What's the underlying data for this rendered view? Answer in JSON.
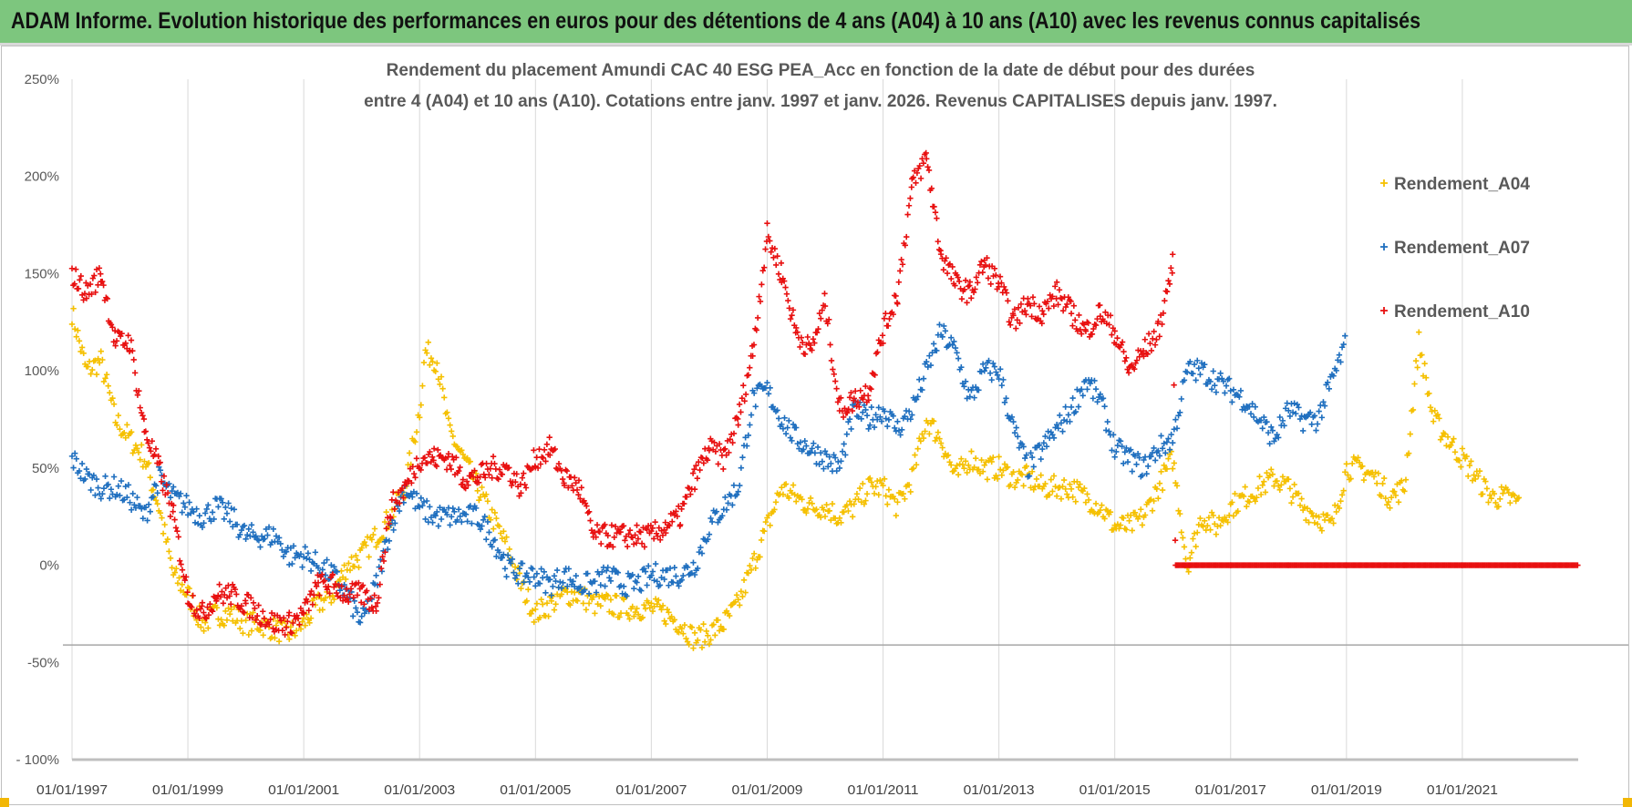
{
  "header": {
    "title": "ADAM Informe. Evolution historique des performances en euros pour des détentions de 4 ans (A04) à 10 ans (A10) avec les revenus connus capitalisés"
  },
  "colors": {
    "banner": "#7dc67e",
    "A04": "#f5c000",
    "A07": "#1f6fbf",
    "A10": "#e81010",
    "grid": "#d9d9d9",
    "text": "#595959"
  },
  "chart_data": {
    "type": "scatter",
    "title": "Rendement du placement Amundi CAC 40 ESG PEA_Acc en fonction de la date de début pour des durées",
    "subtitle": "entre 4 (A04) et 10 ans (A10).  Cotations entre janv. 1997 et janv. 2026. Revenus CAPITALISES  depuis janv. 1997.",
    "xlabel": "",
    "ylabel": "",
    "xlim": [
      1997,
      2023
    ],
    "ylim": [
      -100,
      250
    ],
    "yticks": [
      250,
      200,
      150,
      100,
      50,
      0,
      -50,
      -100
    ],
    "ytick_labels": [
      "250%",
      "200%",
      "150%",
      "100%",
      "50%",
      "0%",
      "-50%",
      "- 100%"
    ],
    "xtick_labels": [
      "01/01/1997",
      "01/01/1999",
      "01/01/2001",
      "01/01/2003",
      "01/01/2005",
      "01/01/2007",
      "01/01/2009",
      "01/01/2011",
      "01/01/2013",
      "01/01/2015",
      "01/01/2017",
      "01/01/2019",
      "01/01/2021"
    ],
    "xticks": [
      1997,
      1999,
      2001,
      2003,
      2005,
      2007,
      2009,
      2011,
      2013,
      2015,
      2017,
      2019,
      2021
    ],
    "grid": "vertical",
    "legend_position": "right",
    "marker": "+",
    "series": [
      {
        "name": "Rendement_A04",
        "color": "#f5c000",
        "x": [
          1997,
          1997.25,
          1997.5,
          1997.75,
          1998,
          1998.25,
          1998.5,
          1998.75,
          1999,
          1999.25,
          1999.5,
          1999.75,
          2000,
          2000.25,
          2000.5,
          2000.75,
          2001,
          2001.25,
          2001.5,
          2001.75,
          2002,
          2002.25,
          2002.5,
          2002.75,
          2003,
          2003.1,
          2003.3,
          2003.5,
          2003.75,
          2004,
          2004.25,
          2004.5,
          2004.75,
          2005,
          2005.25,
          2005.5,
          2005.75,
          2006,
          2006.25,
          2006.5,
          2006.75,
          2007,
          2007.25,
          2007.5,
          2007.75,
          2008,
          2008.25,
          2008.5,
          2008.75,
          2009,
          2009.25,
          2009.5,
          2009.75,
          2010,
          2010.25,
          2010.5,
          2010.75,
          2011,
          2011.25,
          2011.5,
          2011.75,
          2012,
          2012.25,
          2012.5,
          2012.75,
          2013,
          2013.25,
          2013.5,
          2013.75,
          2014,
          2014.25,
          2014.5,
          2014.75,
          2015,
          2015.25,
          2015.5,
          2015.75,
          2016,
          2016.25,
          2016.5,
          2016.75,
          2017,
          2017.25,
          2017.5,
          2017.75,
          2018,
          2018.25,
          2018.5,
          2018.75,
          2019,
          2019.25,
          2019.5,
          2019.75,
          2020,
          2020.25,
          2020.5,
          2020.75,
          2021,
          2021.25,
          2021.5,
          2021.75,
          2022
        ],
        "y": [
          130,
          100,
          105,
          75,
          65,
          55,
          30,
          -5,
          -15,
          -30,
          -25,
          -25,
          -30,
          -30,
          -33,
          -35,
          -30,
          -20,
          -15,
          0,
          5,
          15,
          25,
          40,
          80,
          110,
          105,
          70,
          55,
          40,
          25,
          10,
          -10,
          -25,
          -20,
          -15,
          -15,
          -20,
          -20,
          -22,
          -22,
          -22,
          -25,
          -30,
          -38,
          -35,
          -30,
          -20,
          0,
          20,
          40,
          35,
          30,
          30,
          25,
          30,
          40,
          40,
          30,
          45,
          75,
          65,
          45,
          55,
          50,
          50,
          45,
          45,
          40,
          40,
          40,
          35,
          30,
          20,
          20,
          25,
          40,
          55,
          0,
          25,
          20,
          30,
          35,
          40,
          45,
          40,
          30,
          25,
          20,
          50,
          50,
          45,
          35,
          40,
          115,
          75,
          65,
          55,
          45,
          35,
          35,
          32
        ]
      },
      {
        "name": "Rendement_A07",
        "color": "#1f6fbf",
        "x": [
          1997,
          1997.25,
          1997.5,
          1997.75,
          1998,
          1998.25,
          1998.5,
          1998.75,
          1999,
          1999.25,
          1999.5,
          1999.75,
          2000,
          2000.25,
          2000.5,
          2000.75,
          2001,
          2001.25,
          2001.5,
          2001.75,
          2002,
          2002.25,
          2002.5,
          2002.75,
          2003,
          2003.25,
          2003.5,
          2003.75,
          2004,
          2004.25,
          2004.5,
          2004.75,
          2005,
          2005.25,
          2005.5,
          2005.75,
          2006,
          2006.25,
          2006.5,
          2006.75,
          2007,
          2007.25,
          2007.5,
          2007.75,
          2008,
          2008.25,
          2008.5,
          2008.75,
          2009,
          2009.25,
          2009.5,
          2009.75,
          2010,
          2010.25,
          2010.5,
          2010.75,
          2011,
          2011.25,
          2011.5,
          2011.75,
          2012,
          2012.25,
          2012.5,
          2012.75,
          2013,
          2013.25,
          2013.5,
          2013.75,
          2014,
          2014.25,
          2014.5,
          2014.75,
          2015,
          2015.25,
          2015.5,
          2015.75,
          2016,
          2016.25,
          2016.5,
          2016.75,
          2017,
          2017.25,
          2017.5,
          2017.75,
          2018,
          2018.25,
          2018.5,
          2018.75,
          2019
        ],
        "y": [
          55,
          45,
          40,
          40,
          35,
          25,
          45,
          35,
          30,
          25,
          30,
          25,
          15,
          15,
          15,
          5,
          5,
          0,
          -5,
          -15,
          -30,
          -10,
          20,
          40,
          30,
          25,
          25,
          25,
          25,
          15,
          0,
          -5,
          -5,
          -10,
          -5,
          -10,
          -10,
          -5,
          -10,
          -10,
          -5,
          -5,
          -5,
          0,
          20,
          30,
          40,
          85,
          90,
          75,
          65,
          60,
          55,
          50,
          80,
          75,
          80,
          70,
          80,
          100,
          120,
          110,
          85,
          100,
          100,
          70,
          50,
          60,
          70,
          80,
          95,
          85,
          60,
          55,
          50,
          60,
          65,
          100,
          100,
          95,
          90,
          85,
          75,
          65,
          80,
          75,
          75,
          95,
          115
        ]
      },
      {
        "name": "Rendement_A10",
        "color": "#e81010",
        "x": [
          1997,
          1997.25,
          1997.5,
          1997.75,
          1998,
          1998.25,
          1998.5,
          1998.75,
          1999,
          1999.25,
          1999.5,
          1999.75,
          2000,
          2000.25,
          2000.5,
          2000.75,
          2001,
          2001.25,
          2001.5,
          2001.75,
          2002,
          2002.25,
          2002.5,
          2002.75,
          2003,
          2003.25,
          2003.5,
          2003.75,
          2004,
          2004.25,
          2004.5,
          2004.75,
          2005,
          2005.25,
          2005.5,
          2005.75,
          2006,
          2006.25,
          2006.5,
          2006.75,
          2007,
          2007.25,
          2007.5,
          2007.75,
          2008,
          2008.25,
          2008.5,
          2008.75,
          2009,
          2009.25,
          2009.5,
          2009.75,
          2010,
          2010.25,
          2010.5,
          2010.75,
          2011,
          2011.25,
          2011.5,
          2011.75,
          2012,
          2012.25,
          2012.5,
          2012.75,
          2013,
          2013.25,
          2013.5,
          2013.75,
          2014,
          2014.25,
          2014.5,
          2014.75,
          2015,
          2015.25,
          2015.5,
          2015.75,
          2016,
          2016.05,
          2017,
          2018,
          2019,
          2020,
          2021,
          2022,
          2023
        ],
        "y": [
          150,
          140,
          150,
          115,
          115,
          70,
          50,
          25,
          -15,
          -25,
          -15,
          -15,
          -20,
          -25,
          -30,
          -30,
          -25,
          -10,
          -10,
          -15,
          -15,
          -20,
          30,
          40,
          55,
          55,
          55,
          45,
          45,
          50,
          50,
          40,
          55,
          60,
          45,
          40,
          15,
          15,
          15,
          15,
          15,
          20,
          25,
          45,
          60,
          55,
          75,
          110,
          170,
          150,
          120,
          110,
          135,
          80,
          85,
          90,
          120,
          140,
          195,
          210,
          160,
          145,
          140,
          155,
          145,
          125,
          135,
          130,
          140,
          130,
          120,
          130,
          120,
          100,
          110,
          120,
          155,
          0,
          0,
          0,
          0,
          0,
          0,
          0,
          0
        ]
      }
    ]
  }
}
